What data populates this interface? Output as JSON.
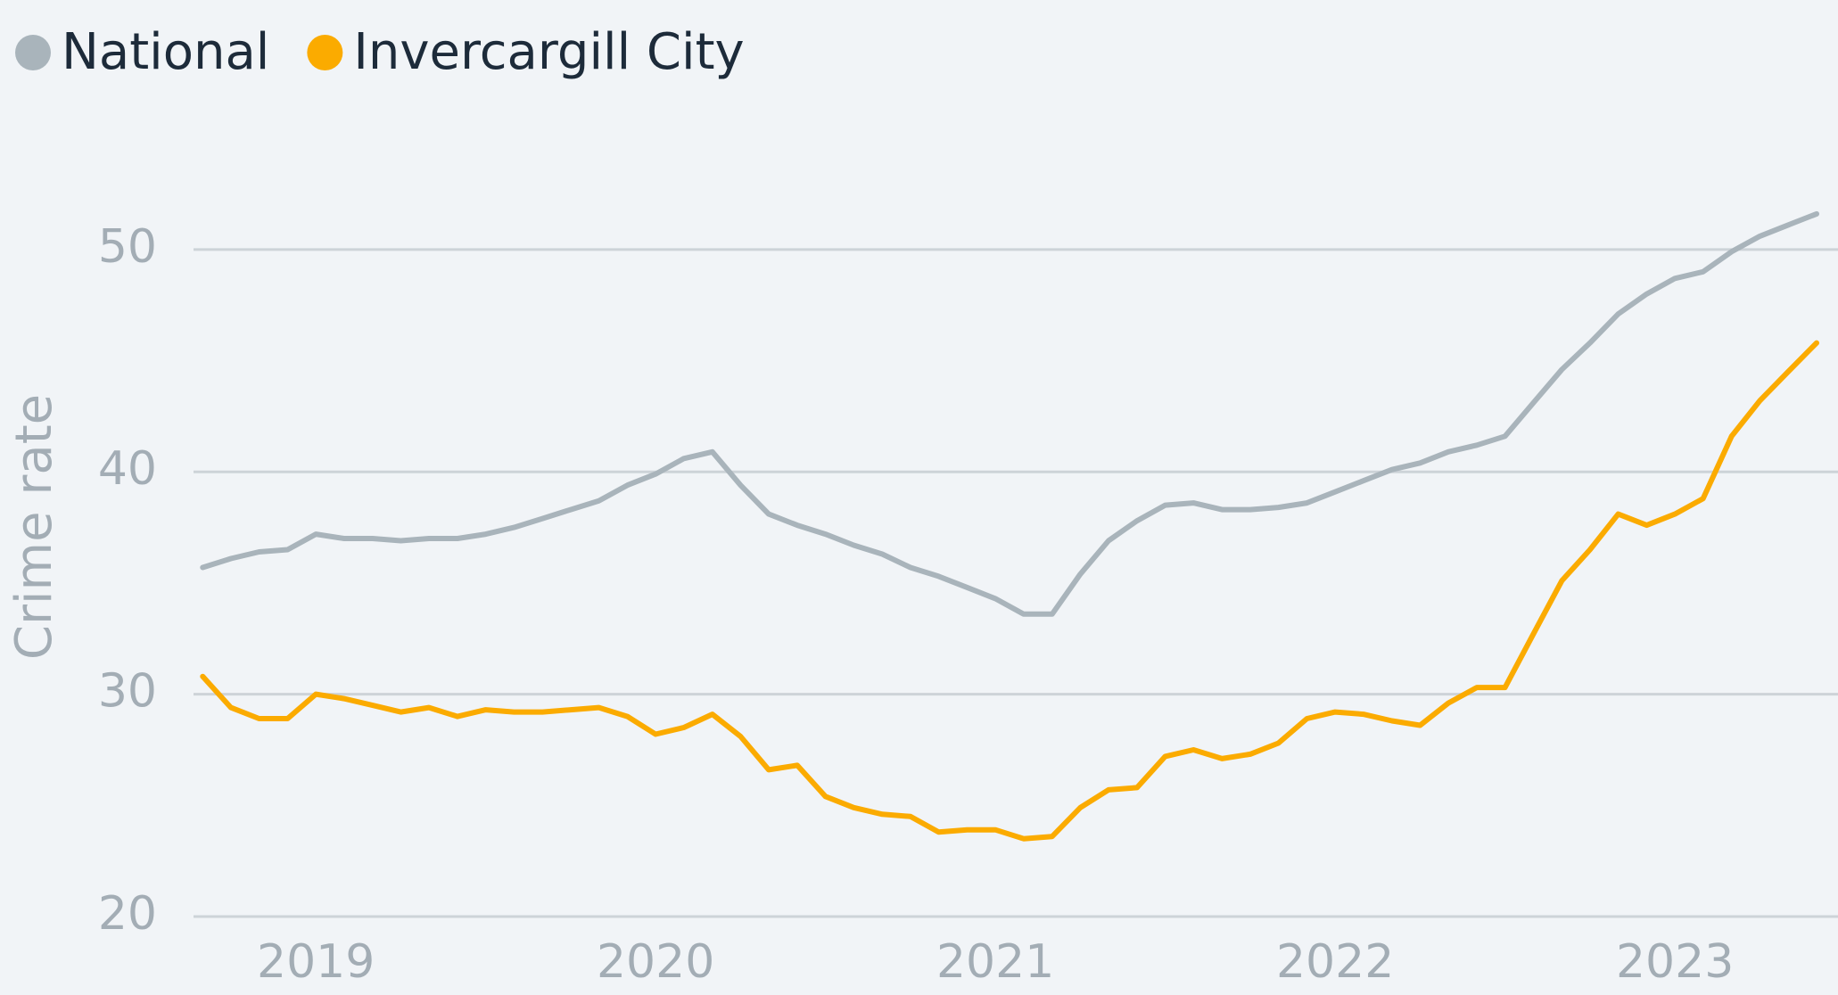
{
  "chart_data": {
    "type": "line",
    "y_label": "Crime rate",
    "legend": "top-left",
    "grid": true,
    "xlim": [
      2018.64,
      2023.48
    ],
    "xticks": [
      2019,
      2020,
      2021,
      2022,
      2023
    ],
    "ylim": [
      20,
      52.5
    ],
    "yticks": [
      20,
      30,
      40,
      50
    ],
    "x": [
      2018.667,
      2018.75,
      2018.833,
      2018.917,
      2019,
      2019.083,
      2019.167,
      2019.25,
      2019.333,
      2019.417,
      2019.5,
      2019.583,
      2019.667,
      2019.75,
      2019.833,
      2019.917,
      2020,
      2020.083,
      2020.167,
      2020.25,
      2020.333,
      2020.417,
      2020.5,
      2020.583,
      2020.667,
      2020.75,
      2020.833,
      2020.917,
      2021,
      2021.083,
      2021.167,
      2021.25,
      2021.333,
      2021.417,
      2021.5,
      2021.583,
      2021.667,
      2021.75,
      2021.833,
      2021.917,
      2022,
      2022.083,
      2022.167,
      2022.25,
      2022.333,
      2022.417,
      2022.5,
      2022.583,
      2022.667,
      2022.75,
      2022.833,
      2022.917,
      2023,
      2023.083,
      2023.167,
      2023.25,
      2023.333,
      2023.417
    ],
    "series": [
      {
        "name": "National",
        "color": "#a9b4bb",
        "values": [
          35.7,
          36.1,
          36.4,
          36.5,
          37.2,
          37.0,
          37.0,
          36.9,
          37.0,
          37.0,
          37.2,
          37.5,
          37.9,
          38.3,
          38.7,
          39.4,
          39.9,
          40.6,
          40.9,
          39.4,
          38.1,
          37.6,
          37.2,
          36.7,
          36.3,
          35.7,
          35.3,
          34.8,
          34.3,
          33.6,
          33.6,
          35.4,
          36.9,
          37.8,
          38.5,
          38.6,
          38.3,
          38.3,
          38.4,
          38.6,
          39.1,
          39.6,
          40.1,
          40.4,
          40.9,
          41.2,
          41.6,
          43.1,
          44.6,
          45.8,
          47.1,
          48.0,
          48.7,
          49.0,
          49.9,
          50.6,
          51.1,
          51.6
        ]
      },
      {
        "name": "Invercargill City",
        "color": "#fbab00",
        "values": [
          30.8,
          29.4,
          28.9,
          28.9,
          30.0,
          29.8,
          29.5,
          29.2,
          29.4,
          29.0,
          29.3,
          29.2,
          29.2,
          29.3,
          29.4,
          29.0,
          28.2,
          28.5,
          29.1,
          28.1,
          26.6,
          26.8,
          25.4,
          24.9,
          24.6,
          24.5,
          23.8,
          23.9,
          23.9,
          23.5,
          23.6,
          24.9,
          25.7,
          25.8,
          27.2,
          27.5,
          27.1,
          27.3,
          27.8,
          28.9,
          29.2,
          29.1,
          28.8,
          28.6,
          29.6,
          30.3,
          30.3,
          32.7,
          35.1,
          36.5,
          38.1,
          37.6,
          38.1,
          38.8,
          41.6,
          43.2,
          44.5,
          45.8
        ]
      }
    ]
  }
}
